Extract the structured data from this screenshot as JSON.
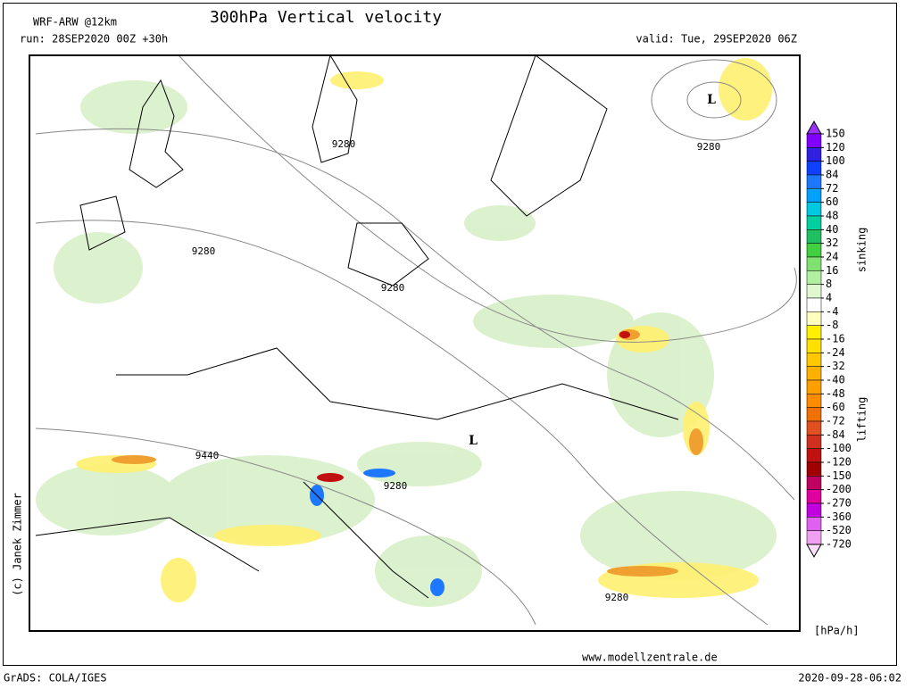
{
  "header": {
    "model": "WRF-ARW @12km",
    "title": "300hPa Vertical velocity",
    "run": "run: 28SEP2020 00Z +30h",
    "valid": "valid: Tue, 29SEP2020 06Z"
  },
  "map": {
    "contour_labels": [
      9280,
      9280,
      9280,
      9280,
      9280,
      9280,
      9440
    ],
    "lows": [
      "L",
      "L"
    ],
    "copyright": "(c) Janek Zimmer",
    "source": "www.modellzentrale.de"
  },
  "colorbar": {
    "ticks": [
      150,
      120,
      100,
      84,
      72,
      60,
      48,
      40,
      32,
      24,
      16,
      8,
      4,
      -4,
      -8,
      -16,
      -24,
      -32,
      -40,
      -48,
      -60,
      -72,
      -84,
      -100,
      -120,
      -150,
      -200,
      -270,
      -360,
      -520,
      -720
    ],
    "colors": [
      "#9b30ff",
      "#8000ff",
      "#3020e0",
      "#1040ff",
      "#1e78ff",
      "#00a0ff",
      "#00c8e0",
      "#00d0a0",
      "#20c060",
      "#40d040",
      "#80e070",
      "#b0f0a0",
      "#e0f8d0",
      "#ffffff",
      "#ffffc0",
      "#fff000",
      "#ffe000",
      "#ffc800",
      "#ffb000",
      "#ffa000",
      "#ff8c00",
      "#f07000",
      "#e05020",
      "#d03020",
      "#c01010",
      "#a00000",
      "#c00060",
      "#e000a0",
      "#c000e0",
      "#e060f0",
      "#f0a0f0",
      "#ffe0ff"
    ],
    "upper_label": "sinking",
    "lower_label": "lifting",
    "unit": "[hPa/h]"
  },
  "footer": {
    "software": "GrADS: COLA/IGES",
    "timestamp": "2020-09-28-06:02"
  }
}
